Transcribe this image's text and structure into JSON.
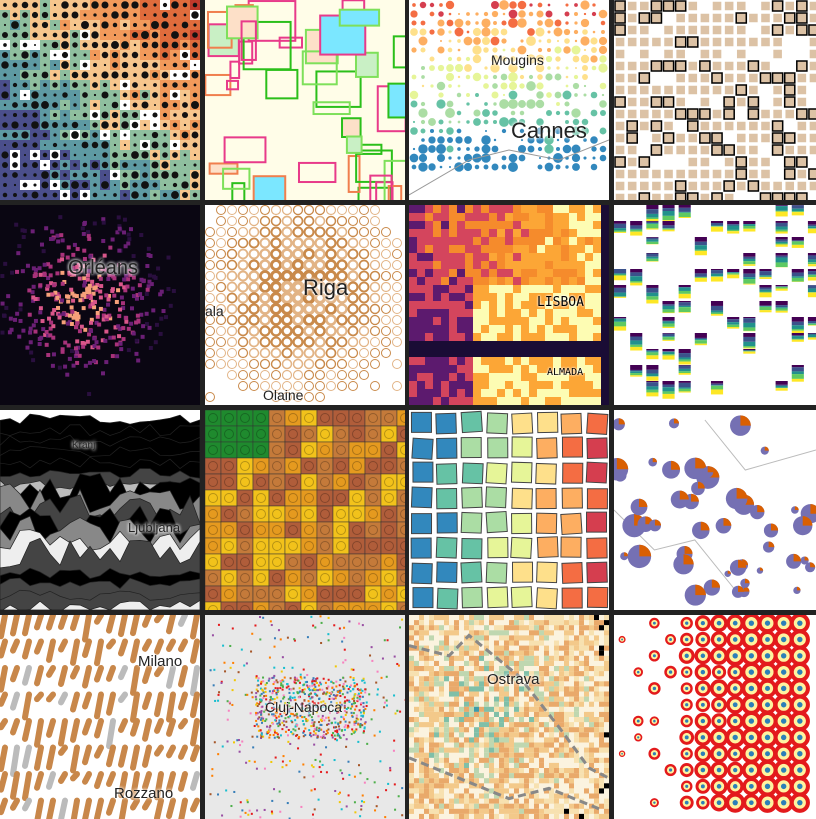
{
  "tiles": [
    {
      "style": "heat-dots",
      "bg": "#d9603f",
      "palette": [
        "#c0392b",
        "#e06c3c",
        "#f29a5b",
        "#f7c68d",
        "#8fbf9f",
        "#5e9aa3",
        "#4b4f8c"
      ],
      "labels": []
    },
    {
      "style": "outlines",
      "bg": "#fffde8",
      "palette": [
        "#2bbf1a",
        "#7ee05a",
        "#f07f4e",
        "#e83a8a",
        "#c9f0c5",
        "#fde0c8",
        "#7be7ff"
      ],
      "labels": []
    },
    {
      "style": "scatter-circles",
      "bg": "#ffffff",
      "palette": [
        "#d53e4f",
        "#f46d43",
        "#fdae61",
        "#fee08b",
        "#e6f598",
        "#abdda4",
        "#66c2a5",
        "#3288bd"
      ],
      "labels": [
        {
          "text": "Mougins",
          "size": 14
        },
        {
          "text": "Cannes",
          "size": 22
        }
      ]
    },
    {
      "style": "frames",
      "bg": "#ffffff",
      "palette": [
        "#dcc2a5",
        "#ffffff",
        "#000000"
      ],
      "labels": []
    },
    {
      "style": "dark-density",
      "bg": "#0a0612",
      "palette": [
        "#2a0f3f",
        "#6b1f75",
        "#a8327a",
        "#d9568a",
        "#f6a07a"
      ],
      "labels": [
        {
          "text": "Orléans",
          "size": 20
        }
      ]
    },
    {
      "style": "rings",
      "bg": "#ffffff",
      "palette": [
        "#c98a4b",
        "#e2b486"
      ],
      "labels": [
        {
          "text": "Riga",
          "size": 22
        },
        {
          "text": "ala",
          "size": 14
        },
        {
          "text": "Olaine",
          "size": 14
        }
      ]
    },
    {
      "style": "pixel-fire",
      "bg": "#000000",
      "palette": [
        "#fdfcb3",
        "#fca636",
        "#f58b2c",
        "#d4455d",
        "#5c1a6e",
        "#1a0c35"
      ],
      "labels": [
        {
          "text": "LISBOA",
          "size": 13
        },
        {
          "text": "ALMADA",
          "size": 10
        }
      ]
    },
    {
      "style": "stacked-bars",
      "bg": "#ffffff",
      "palette": [
        "#440154",
        "#3b528b",
        "#21918c",
        "#5ec962",
        "#fde725"
      ],
      "labels": []
    },
    {
      "style": "ridges",
      "bg": "#ffffff",
      "palette": [
        "#000000",
        "#444444",
        "#888888",
        "#bbbbbb",
        "#eeeeee"
      ],
      "labels": [
        {
          "text": "Kranj",
          "size": 10
        },
        {
          "text": "Ljubljana",
          "size": 13
        }
      ]
    },
    {
      "style": "lego",
      "bg": "#e7b515",
      "palette": [
        "#f2c21b",
        "#e59a1f",
        "#c47a3a",
        "#b05d3a",
        "#1f8a2e",
        "#b3161b"
      ],
      "labels": []
    },
    {
      "style": "wobbly-squares",
      "bg": "#ffffff",
      "palette": [
        "#9e0142",
        "#d53e4f",
        "#f46d43",
        "#fdae61",
        "#fee08b",
        "#e6f598",
        "#abdda4",
        "#66c2a5",
        "#3288bd"
      ],
      "labels": []
    },
    {
      "style": "pies",
      "bg": "#ffffff",
      "palette": [
        "#7570b3",
        "#d95f02",
        "#1b9e77"
      ],
      "labels": []
    },
    {
      "style": "capsules",
      "bg": "#ffffff",
      "palette": [
        "#c8874a",
        "#bbbbbb"
      ],
      "labels": [
        {
          "text": "Milano",
          "size": 15
        },
        {
          "text": "Rozzano",
          "size": 15
        }
      ]
    },
    {
      "style": "clusters",
      "bg": "#e8e8e8",
      "palette": [
        "#e41a1c",
        "#377eb8",
        "#4daf4a",
        "#984ea3",
        "#ff7f00",
        "#f0c808",
        "#a65628",
        "#f781bf",
        "#17becf"
      ],
      "labels": [
        {
          "text": "Cluj-Napoca",
          "size": 14
        }
      ]
    },
    {
      "style": "fine-pixels",
      "bg": "#fbf3df",
      "palette": [
        "#f7e1b0",
        "#f3c98a",
        "#e9a96a",
        "#bfd7b0",
        "#7fbfa8",
        "#3f9aa8"
      ],
      "labels": [
        {
          "text": "Ostrava",
          "size": 15
        }
      ]
    },
    {
      "style": "bullseye",
      "bg": "#ffffff",
      "palette": [
        "#e31a1c",
        "#fff3a0",
        "#2c7fb8",
        "#3a8f9f"
      ],
      "labels": []
    }
  ]
}
